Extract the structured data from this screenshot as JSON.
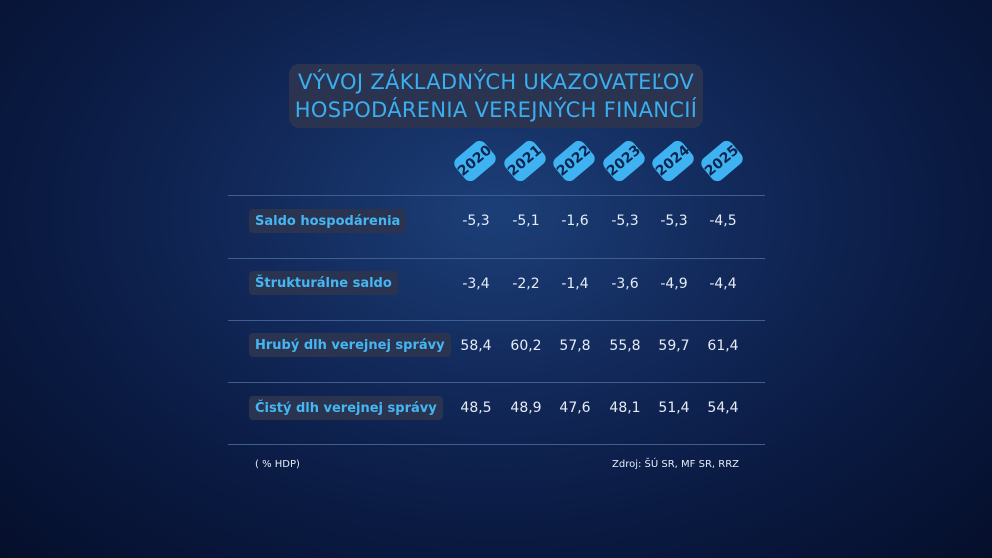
{
  "chart_data": {
    "type": "table",
    "title": [
      "VÝVOJ ZÁKLADNÝCH UKAZOVATEĽOV",
      "HOSPODÁRENIA VEREJNÝCH FINANCIÍ"
    ],
    "columns": [
      "2020",
      "2021",
      "2022",
      "2023",
      "2024",
      "2025"
    ],
    "rows": [
      {
        "label": "Saldo hospodárenia",
        "values": [
          "-5,3",
          "-5,1",
          "-1,6",
          "-5,3",
          "-5,3",
          "-4,5"
        ]
      },
      {
        "label": "Štrukturálne saldo",
        "values": [
          "-3,4",
          "-2,2",
          "-1,4",
          "-3,6",
          "-4,9",
          "-4,4"
        ]
      },
      {
        "label": "Hrubý dlh verejnej správy",
        "values": [
          "58,4",
          "60,2",
          "57,8",
          "55,8",
          "59,7",
          "61,4"
        ]
      },
      {
        "label": "Čistý dlh verejnej správy",
        "values": [
          "48,5",
          "48,9",
          "47,6",
          "48,1",
          "51,4",
          "54,4"
        ]
      }
    ],
    "unit_note": "( % HDP)",
    "source": "Zdroj: ŠÚ SR, MF SR, RRZ"
  },
  "colors": {
    "accent": "#3fb3f2",
    "label_box": "#2a3450",
    "background": "#0a1a42"
  }
}
